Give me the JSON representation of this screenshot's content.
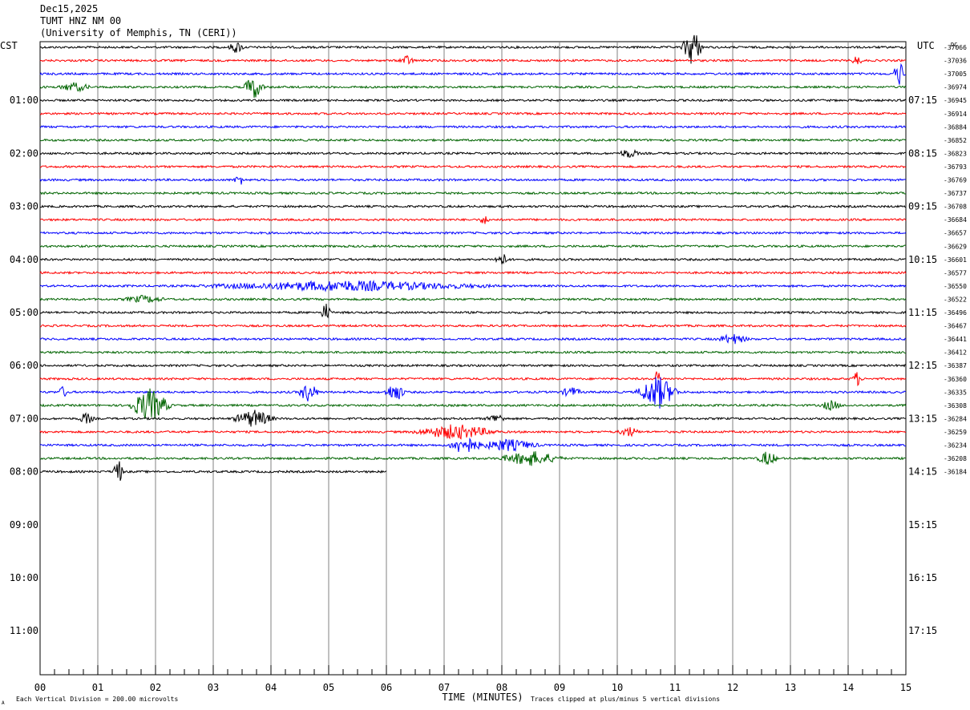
{
  "header": {
    "date": "Dec15,2025",
    "station": "TUMT HNZ NM 00",
    "network": "(University of Memphis, TN (CERI))",
    "left_tz": "CST",
    "right_tz": "UTC"
  },
  "footer": {
    "scale_note": "Each Vertical Division =  200.00 microvolts",
    "clip_note": "Traces clipped at plus/minus 5 vertical divisions",
    "corner_mark": "A"
  },
  "chart_data": {
    "type": "line",
    "title": "",
    "xlabel": "TIME (MINUTES)",
    "ylabel": "",
    "x_ticks": [
      "00",
      "01",
      "02",
      "03",
      "04",
      "05",
      "06",
      "07",
      "08",
      "09",
      "10",
      "11",
      "12",
      "13",
      "14",
      "15"
    ],
    "xlim": [
      0,
      15
    ],
    "grid": true,
    "left_hour_labels": [
      "01:00",
      "02:00",
      "03:00",
      "04:00",
      "05:00",
      "06:00",
      "07:00",
      "08:00",
      "09:00",
      "10:00",
      "11:00"
    ],
    "right_hour_labels": [
      "07:15",
      "08:15",
      "09:15",
      "10:15",
      "11:15",
      "12:15",
      "13:15",
      "14:15",
      "15:15",
      "16:15",
      "17:15"
    ],
    "right_top_label": "DC",
    "trace_offsets": [
      "-37066",
      "-37036",
      "-37005",
      "-36974",
      "-36945",
      "-36914",
      "-36884",
      "-36852",
      "-36823",
      "-36793",
      "-36769",
      "-36737",
      "-36708",
      "-36684",
      "-36657",
      "-36629",
      "-36601",
      "-36577",
      "-36550",
      "-36522",
      "-36496",
      "-36467",
      "-36441",
      "-36412",
      "-36387",
      "-36360",
      "-36335",
      "-36308",
      "-36284",
      "-36259",
      "-36234",
      "-36208",
      "-36184"
    ],
    "trace_colors": [
      "#000000",
      "#ff0000",
      "#0000ff",
      "#006400"
    ],
    "traces_per_hour": 4,
    "last_trace_end_minute": 6.0,
    "events": [
      {
        "trace": 0,
        "minute": 3.4,
        "amp": 1.2,
        "dur": 0.15
      },
      {
        "trace": 0,
        "minute": 11.3,
        "amp": 4.0,
        "dur": 0.2
      },
      {
        "trace": 1,
        "minute": 6.35,
        "amp": 1.0,
        "dur": 0.15
      },
      {
        "trace": 1,
        "minute": 14.15,
        "amp": 1.0,
        "dur": 0.1
      },
      {
        "trace": 2,
        "minute": 14.9,
        "amp": 2.5,
        "dur": 0.15
      },
      {
        "trace": 3,
        "minute": 0.6,
        "amp": 0.9,
        "dur": 0.3
      },
      {
        "trace": 3,
        "minute": 3.7,
        "amp": 2.5,
        "dur": 0.2
      },
      {
        "trace": 8,
        "minute": 10.2,
        "amp": 0.9,
        "dur": 0.2
      },
      {
        "trace": 10,
        "minute": 3.45,
        "amp": 1.2,
        "dur": 0.1
      },
      {
        "trace": 13,
        "minute": 7.7,
        "amp": 0.9,
        "dur": 0.1
      },
      {
        "trace": 16,
        "minute": 8.0,
        "amp": 1.3,
        "dur": 0.15
      },
      {
        "trace": 18,
        "minute": 5.3,
        "amp": 1.0,
        "dur": 2.8
      },
      {
        "trace": 19,
        "minute": 1.8,
        "amp": 0.7,
        "dur": 0.4
      },
      {
        "trace": 20,
        "minute": 4.95,
        "amp": 2.0,
        "dur": 0.1
      },
      {
        "trace": 22,
        "minute": 12.0,
        "amp": 1.0,
        "dur": 0.3
      },
      {
        "trace": 25,
        "minute": 10.7,
        "amp": 2.5,
        "dur": 0.05
      },
      {
        "trace": 25,
        "minute": 14.15,
        "amp": 1.5,
        "dur": 0.1
      },
      {
        "trace": 26,
        "minute": 0.4,
        "amp": 1.2,
        "dur": 0.1
      },
      {
        "trace": 26,
        "minute": 4.65,
        "amp": 2.0,
        "dur": 0.2
      },
      {
        "trace": 26,
        "minute": 6.15,
        "amp": 2.0,
        "dur": 0.2
      },
      {
        "trace": 26,
        "minute": 9.2,
        "amp": 1.0,
        "dur": 0.2
      },
      {
        "trace": 26,
        "minute": 10.7,
        "amp": 3.5,
        "dur": 0.4
      },
      {
        "trace": 27,
        "minute": 1.9,
        "amp": 3.5,
        "dur": 0.4
      },
      {
        "trace": 27,
        "minute": 13.7,
        "amp": 1.0,
        "dur": 0.2
      },
      {
        "trace": 28,
        "minute": 0.8,
        "amp": 1.2,
        "dur": 0.15
      },
      {
        "trace": 28,
        "minute": 3.7,
        "amp": 1.8,
        "dur": 0.4
      },
      {
        "trace": 28,
        "minute": 7.9,
        "amp": 0.9,
        "dur": 0.2
      },
      {
        "trace": 29,
        "minute": 7.2,
        "amp": 1.5,
        "dur": 0.8
      },
      {
        "trace": 29,
        "minute": 10.2,
        "amp": 1.0,
        "dur": 0.2
      },
      {
        "trace": 30,
        "minute": 7.35,
        "amp": 2.0,
        "dur": 0.3
      },
      {
        "trace": 30,
        "minute": 8.1,
        "amp": 1.2,
        "dur": 0.6
      },
      {
        "trace": 31,
        "minute": 8.5,
        "amp": 1.5,
        "dur": 0.6
      },
      {
        "trace": 31,
        "minute": 12.6,
        "amp": 1.5,
        "dur": 0.2
      },
      {
        "trace": 32,
        "minute": 1.35,
        "amp": 3.0,
        "dur": 0.1
      }
    ]
  }
}
